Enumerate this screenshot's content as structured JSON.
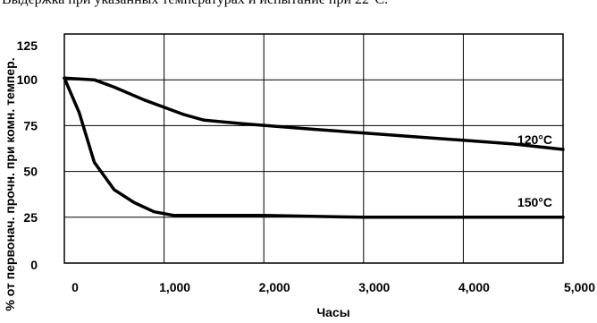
{
  "caption": "Выдержка при указанных температурах и испытание при 22°C.",
  "chart_data": {
    "type": "line",
    "xlabel": "Часы",
    "ylabel": "% от первонач. прочн. при комн. темпер.",
    "xlim": [
      0,
      5000
    ],
    "ylim": [
      0,
      125
    ],
    "grid": true,
    "x_ticks": [
      0,
      1000,
      2000,
      3000,
      4000,
      5000
    ],
    "x_tick_labels": [
      "0",
      "1,000",
      "2,000",
      "3,000",
      "4,000",
      "5,000"
    ],
    "y_ticks": [
      0,
      25,
      50,
      75,
      100,
      125
    ],
    "y_tick_labels": [
      "0",
      "25",
      "50",
      "75",
      "100",
      "125"
    ],
    "series": [
      {
        "name": "120°C",
        "x": [
          0,
          300,
          500,
          800,
          1000,
          1200,
          1400,
          1800,
          2500,
          3000,
          3500,
          4000,
          4500,
          5000
        ],
        "values": [
          101,
          100,
          96,
          89,
          85,
          81,
          78,
          76,
          73,
          71,
          69,
          67,
          65,
          62
        ]
      },
      {
        "name": "150°C",
        "x": [
          0,
          150,
          300,
          500,
          700,
          900,
          1100,
          1400,
          2000,
          3000,
          4000,
          5000
        ],
        "values": [
          101,
          82,
          55,
          40,
          33,
          28,
          26,
          26,
          26,
          25,
          25,
          25
        ]
      }
    ]
  }
}
